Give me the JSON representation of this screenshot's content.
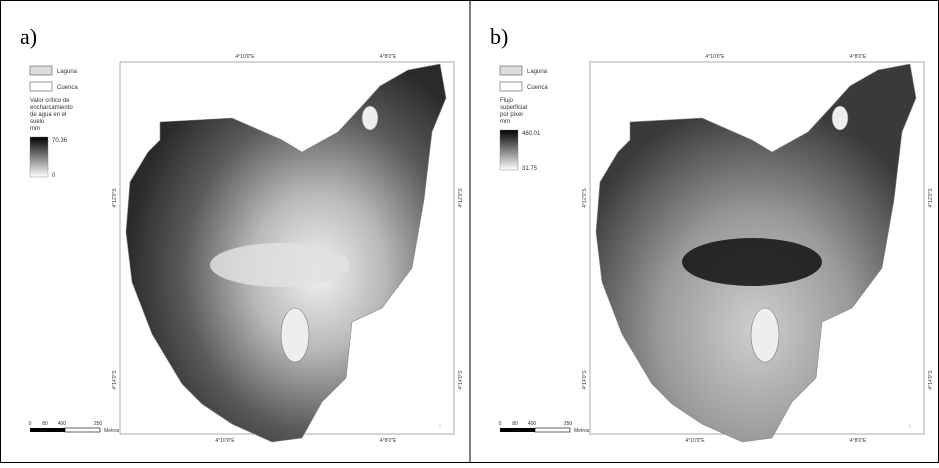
{
  "panels": [
    {
      "label": "a)",
      "legend": {
        "lake": "Laguna",
        "basin": "Cuenca",
        "title_lines": [
          "Valor crítico de",
          "encharcamiento",
          "de agua en el",
          "suelo",
          "mm"
        ],
        "max": "70.36",
        "min": "0"
      },
      "coords": {
        "top_left": "4°10'0\"E",
        "top_right": "4°8'0\"E",
        "bottom_left": "4°10'0\"E",
        "bottom_right": "4°8'0\"E",
        "left_upper": "4°12'0\"S",
        "left_lower": "4°14'0\"S",
        "right_upper": "4°12'0\"S",
        "right_lower": "4°14'0\"S"
      },
      "scale": {
        "ticks": [
          "0",
          "80",
          "400",
          "250"
        ],
        "unit": "Metros"
      }
    },
    {
      "label": "b)",
      "legend": {
        "lake": "Laguna",
        "basin": "Cuenca",
        "title_lines": [
          "Flujo",
          "superficial",
          "por pixel",
          "mm"
        ],
        "max": "460.01",
        "min": "31.75"
      },
      "coords": {
        "top_left": "4°10'0\"E",
        "top_right": "4°8'0\"E",
        "bottom_left": "4°10'0\"E",
        "bottom_right": "4°8'0\"E",
        "left_upper": "4°12'0\"S",
        "left_lower": "4°14'0\"S",
        "right_upper": "4°12'0\"S",
        "right_lower": "4°14'0\"S"
      },
      "scale": {
        "ticks": [
          "0",
          "80",
          "400",
          "250"
        ],
        "unit": "Metros"
      }
    }
  ]
}
